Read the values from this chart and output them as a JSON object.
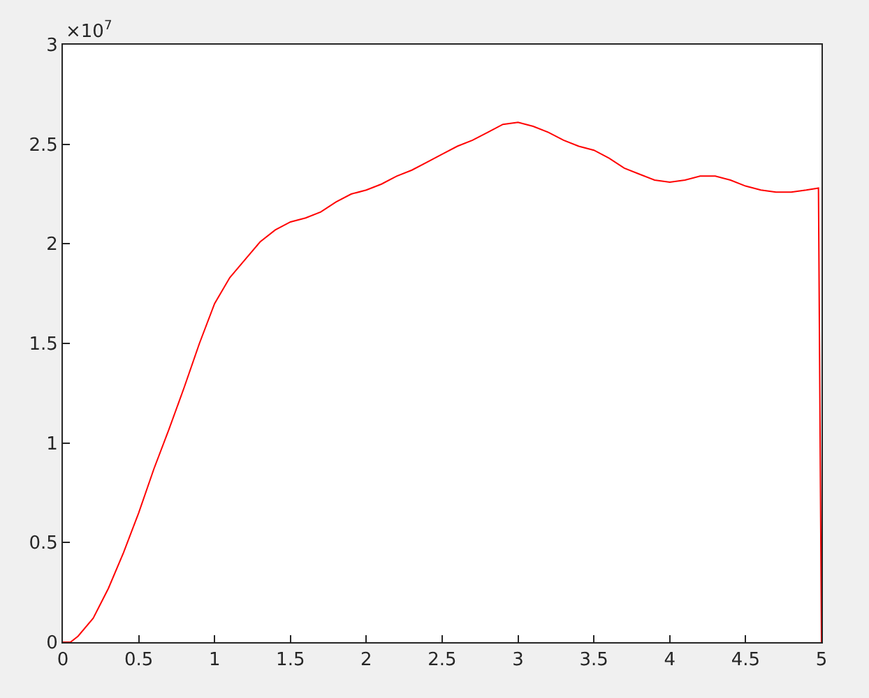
{
  "chart_data": {
    "type": "line",
    "x": [
      0,
      0.05,
      0.1,
      0.2,
      0.3,
      0.4,
      0.5,
      0.6,
      0.7,
      0.8,
      0.9,
      1.0,
      1.1,
      1.2,
      1.3,
      1.4,
      1.5,
      1.6,
      1.7,
      1.8,
      1.9,
      2.0,
      2.1,
      2.2,
      2.3,
      2.4,
      2.5,
      2.6,
      2.7,
      2.8,
      2.9,
      3.0,
      3.1,
      3.2,
      3.3,
      3.4,
      3.5,
      3.6,
      3.7,
      3.8,
      3.9,
      4.0,
      4.1,
      4.2,
      4.3,
      4.4,
      4.5,
      4.6,
      4.7,
      4.8,
      4.9,
      4.98,
      5.0
    ],
    "series": [
      {
        "color": "#ff0000",
        "values": [
          0,
          0,
          0.03,
          0.12,
          0.27,
          0.45,
          0.65,
          0.87,
          1.07,
          1.28,
          1.5,
          1.7,
          1.83,
          1.92,
          2.01,
          2.07,
          2.11,
          2.13,
          2.16,
          2.21,
          2.25,
          2.27,
          2.3,
          2.34,
          2.37,
          2.41,
          2.45,
          2.49,
          2.52,
          2.56,
          2.6,
          2.61,
          2.59,
          2.56,
          2.52,
          2.49,
          2.47,
          2.43,
          2.38,
          2.35,
          2.32,
          2.31,
          2.32,
          2.34,
          2.34,
          2.32,
          2.29,
          2.27,
          2.26,
          2.26,
          2.27,
          2.28,
          0
        ]
      }
    ],
    "xlim": [
      0,
      5
    ],
    "xticks": [
      0,
      0.5,
      1,
      1.5,
      2,
      2.5,
      3,
      3.5,
      4,
      4.5,
      5
    ],
    "ylim": [
      0,
      3
    ],
    "yticks": [
      0,
      0.5,
      1,
      1.5,
      2,
      2.5,
      3
    ],
    "annotations": [
      "×10$^{7}$"
    ],
    "marker": "none",
    "line_style": "solid"
  }
}
